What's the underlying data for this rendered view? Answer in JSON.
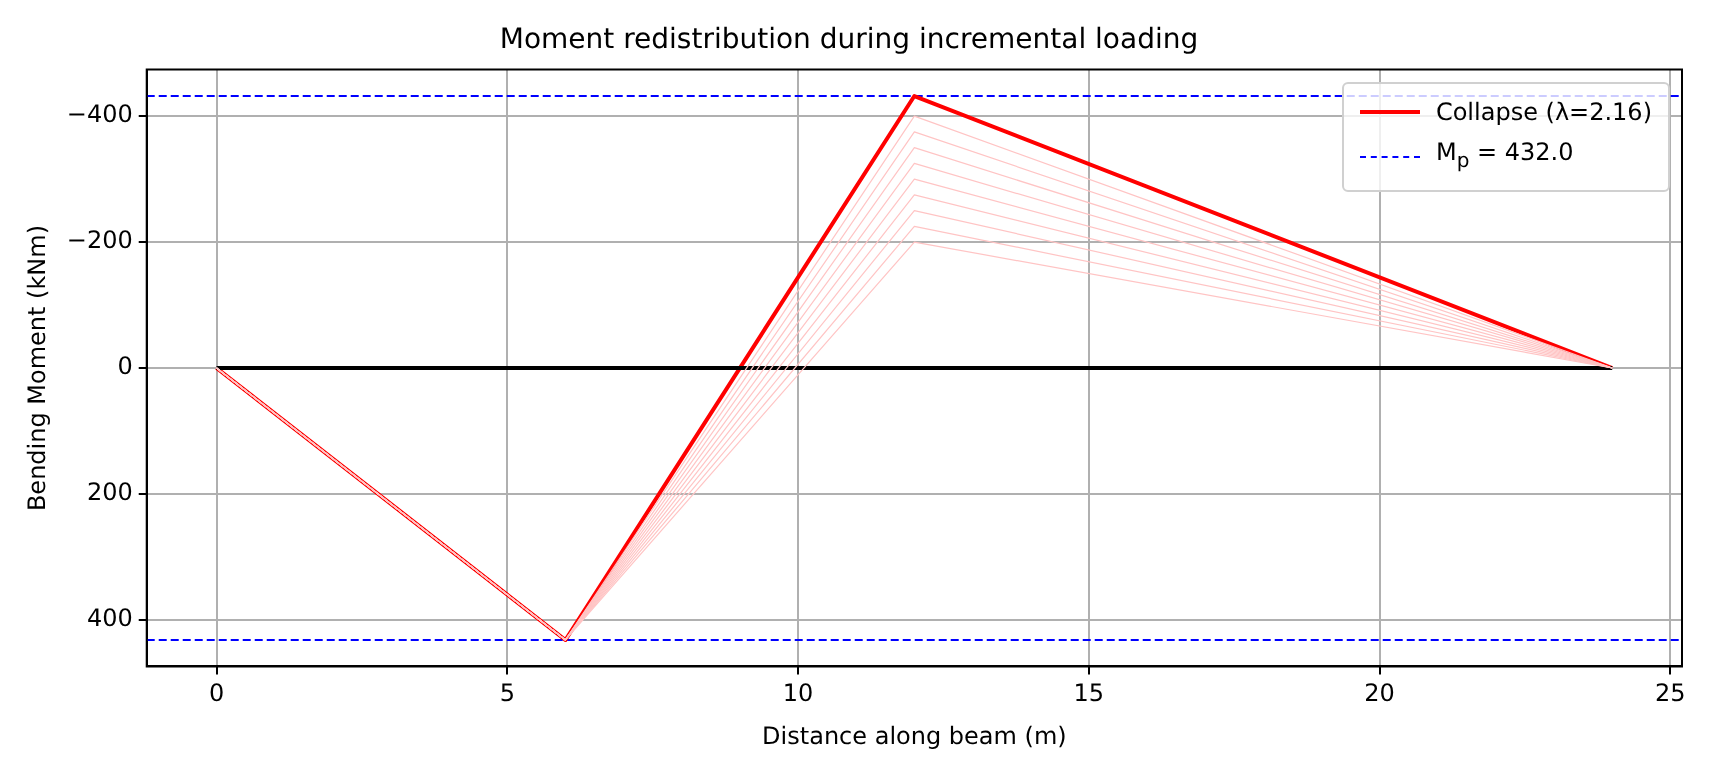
{
  "chart_data": {
    "type": "line",
    "title": "Moment redistribution during incremental loading",
    "xlabel": "Distance along beam (m)",
    "ylabel": "Bending Moment (kNm)",
    "xlim": [
      -1.2,
      25.2
    ],
    "xticks": [
      0,
      5,
      10,
      15,
      20,
      25
    ],
    "ylim": [
      474,
      -474
    ],
    "yticks": [
      -400,
      -200,
      0,
      200,
      400
    ],
    "grid": true,
    "legend": "top right",
    "marker": "none",
    "line_style": "solid",
    "series": [
      {
        "color": "#ffc4c4",
        "x": [
          0,
          6,
          12,
          24
        ],
        "values": [
          0,
          432,
          -200,
          0
        ]
      },
      {
        "color": "#ffc4c4",
        "x": [
          0,
          6,
          12,
          24
        ],
        "values": [
          0,
          432,
          -225,
          0
        ]
      },
      {
        "color": "#ffc4c4",
        "x": [
          0,
          6,
          12,
          24
        ],
        "values": [
          0,
          432,
          -250,
          0
        ]
      },
      {
        "color": "#ffc4c4",
        "x": [
          0,
          6,
          12,
          24
        ],
        "values": [
          0,
          432,
          -275,
          0
        ]
      },
      {
        "color": "#ffc4c4",
        "x": [
          0,
          6,
          12,
          24
        ],
        "values": [
          0,
          432,
          -300,
          0
        ]
      },
      {
        "color": "#ffc4c4",
        "x": [
          0,
          6,
          12,
          24
        ],
        "values": [
          0,
          432,
          -325,
          0
        ]
      },
      {
        "color": "#ffc4c4",
        "x": [
          0,
          6,
          12,
          24
        ],
        "values": [
          0,
          432,
          -350,
          0
        ]
      },
      {
        "color": "#ffc4c4",
        "x": [
          0,
          6,
          12,
          24
        ],
        "values": [
          0,
          432,
          -375,
          0
        ]
      },
      {
        "color": "#ffc4c4",
        "x": [
          0,
          6,
          12,
          24
        ],
        "values": [
          0,
          432,
          -400,
          0
        ]
      },
      {
        "color": "#000000",
        "x": [
          0,
          24
        ],
        "values": [
          0,
          0
        ]
      },
      {
        "name": "Collapse (λ=2.16)",
        "color": "#ff0000",
        "x": [
          0,
          6,
          12,
          24
        ],
        "values": [
          0,
          432,
          -432,
          0
        ]
      }
    ],
    "ref_lines": [
      {
        "axis": "y",
        "value": -432,
        "color": "#0000ff",
        "line_style": "dashed"
      },
      {
        "axis": "y",
        "value": 432,
        "label": "M$_{p}$ = 432.0",
        "color": "#0000ff",
        "line_style": "dashed"
      }
    ]
  }
}
